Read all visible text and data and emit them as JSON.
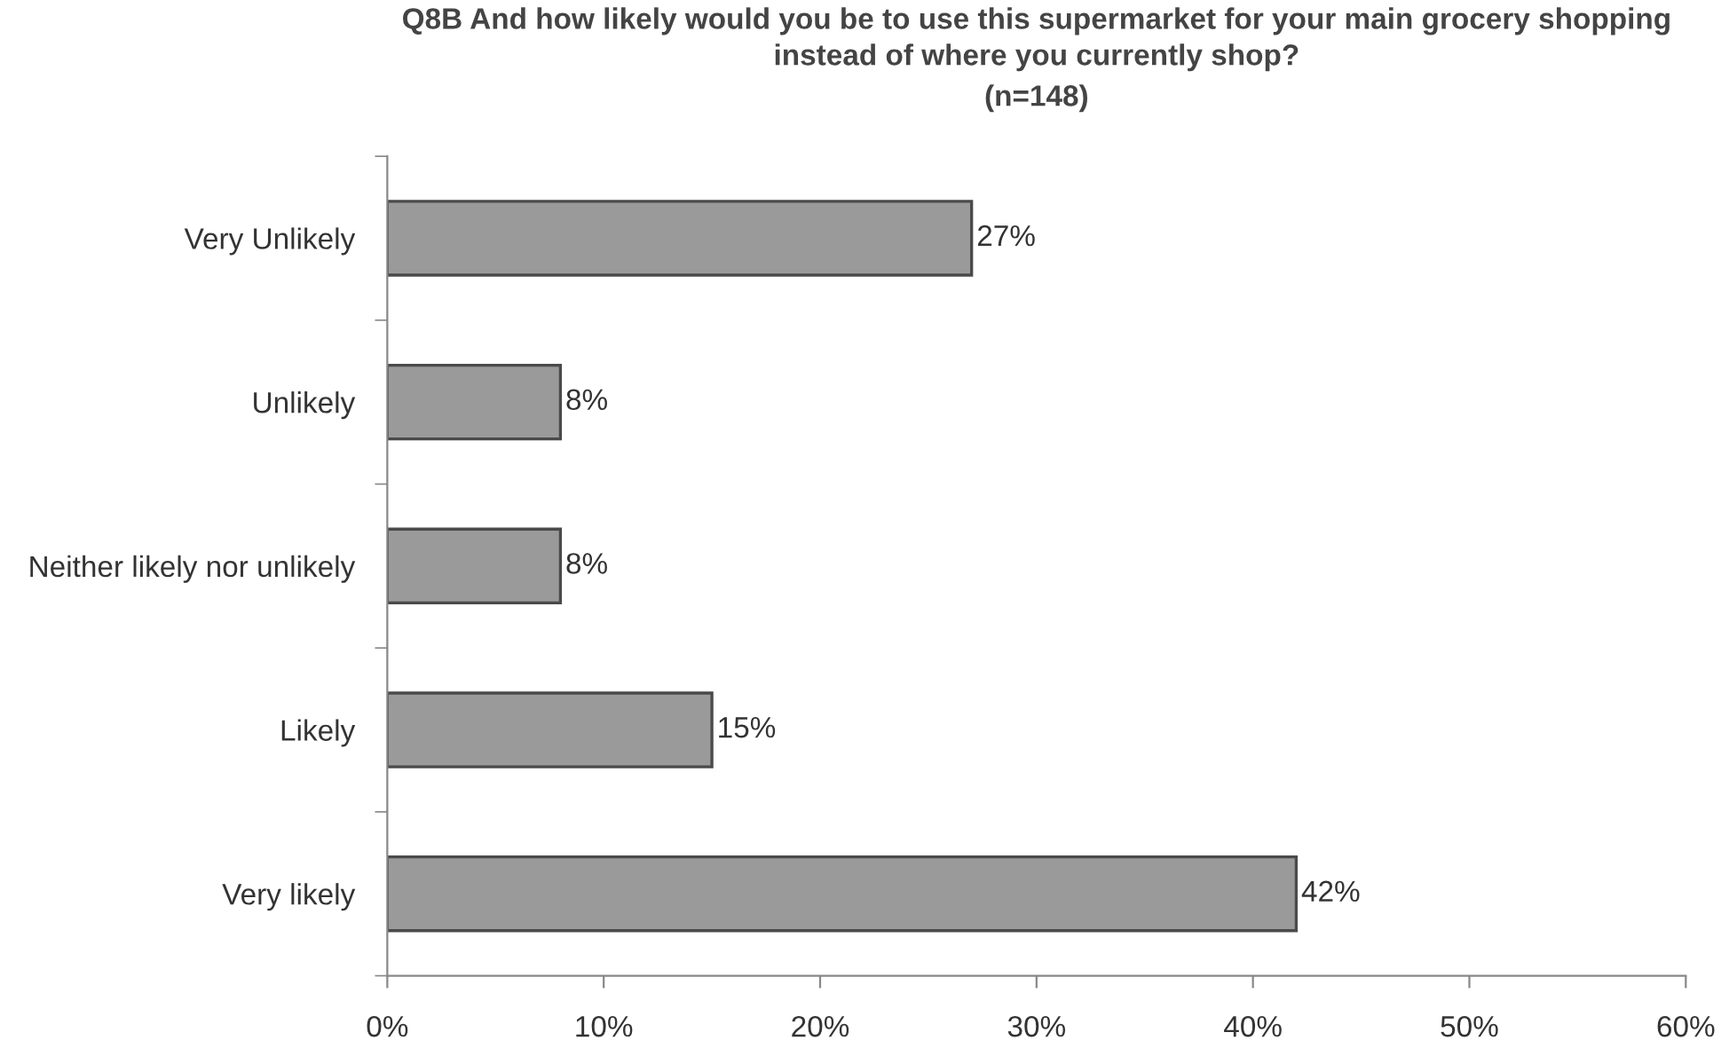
{
  "chart_data": {
    "type": "bar",
    "orientation": "horizontal",
    "title": "Q8B And how likely would you be to use this supermarket for your main grocery shopping\ninstead of where you currently shop?",
    "subtitle": "(n=148)",
    "categories": [
      "Very Unlikely",
      "Unlikely",
      "Neither likely nor unlikely",
      "Likely",
      "Very likely"
    ],
    "values": [
      27,
      8,
      8,
      15,
      42
    ],
    "value_labels": [
      "27%",
      "8%",
      "8%",
      "15%",
      "42%"
    ],
    "color": "#9a9a9a",
    "xlim": [
      0,
      60
    ],
    "xticks": [
      {
        "value": 0,
        "label": "0%"
      },
      {
        "value": 10,
        "label": "10%"
      },
      {
        "value": 20,
        "label": "20%"
      },
      {
        "value": 30,
        "label": "30%"
      },
      {
        "value": 40,
        "label": "40%"
      },
      {
        "value": 50,
        "label": "50%"
      },
      {
        "value": 60,
        "label": "60%"
      }
    ],
    "grid": false,
    "legend": false
  }
}
